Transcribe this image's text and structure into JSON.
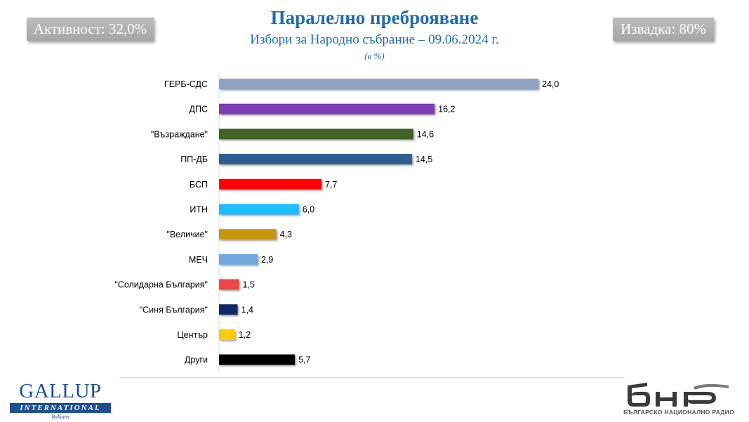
{
  "header": {
    "activity_badge": "Активност: 32,0%",
    "sample_badge": "Извадка: 80%",
    "title": "Паралелно преброяване",
    "subtitle": "Избори за Народно събрание – 09.06.2024 г.",
    "unit": "(в %)"
  },
  "chart_data": {
    "type": "bar",
    "orientation": "horizontal",
    "title": "Паралелно преброяване",
    "subtitle": "Избори за Народно събрание – 09.06.2024 г.",
    "unit": "(в %)",
    "xlabel": "",
    "ylabel": "",
    "xlim": [
      0,
      25
    ],
    "grid": false,
    "legend": "none",
    "categories": [
      "ГЕРБ-СДС",
      "ДПС",
      "\"Възраждане\"",
      "ПП-ДБ",
      "БСП",
      "ИТН",
      "\"Величие\"",
      "МЕЧ",
      "\"Солидарна България\"",
      "\"Синя България\"",
      "Център",
      "Други"
    ],
    "values": [
      24.0,
      16.2,
      14.6,
      14.5,
      7.7,
      6.0,
      4.3,
      2.9,
      1.5,
      1.4,
      1.2,
      5.7
    ],
    "value_labels": [
      "24,0",
      "16,2",
      "14,6",
      "14,5",
      "7,7",
      "6,0",
      "4,3",
      "2,9",
      "1,5",
      "1,4",
      "1,2",
      "5,7"
    ],
    "colors": [
      "#8fa2c2",
      "#7b3cb5",
      "#3f6228",
      "#2f5d8f",
      "#ff0000",
      "#1ebeff",
      "#c8960c",
      "#6fa8dc",
      "#ee4444",
      "#0c2a66",
      "#ffcc00",
      "#000000"
    ]
  },
  "footer": {
    "gallup_name": "GALLUP",
    "gallup_international": "INTERNATIONAL",
    "gallup_balkans": "Balkans",
    "bnr_caption": "БЪЛГАРСКО НАЦИОНАЛНО РАДИО",
    "brand_blue": "#1d4f91"
  }
}
